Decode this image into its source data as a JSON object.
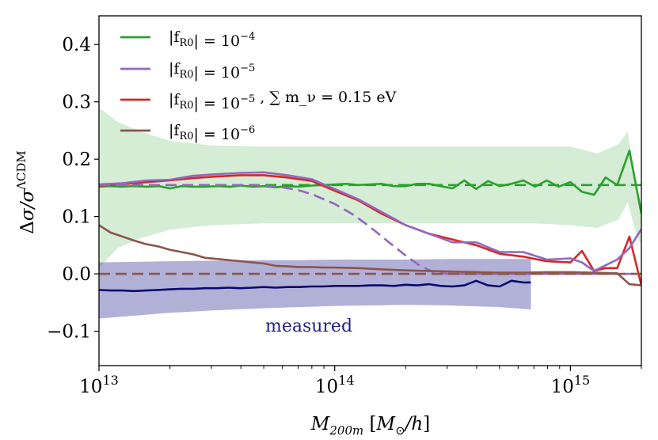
{
  "chart_data": {
    "type": "line",
    "xlabel": "M_200m [M_⊙/h]",
    "ylabel": "Δσ/σ^ΛCDM",
    "xscale": "log",
    "xlim": [
      10000000000000.0,
      2000000000000000.0
    ],
    "ylim": [
      -0.16,
      0.45
    ],
    "x_tick_values": [
      10000000000000.0,
      100000000000000.0,
      1000000000000000.0
    ],
    "x_tick_labels": [
      {
        "base": "10",
        "exp": "13"
      },
      {
        "base": "10",
        "exp": "14"
      },
      {
        "base": "10",
        "exp": "15"
      }
    ],
    "y_tick_values": [
      -0.1,
      0.0,
      0.1,
      0.2,
      0.3,
      0.4
    ],
    "y_tick_labels": [
      "−0.1",
      "0.0",
      "0.1",
      "0.2",
      "0.3",
      "0.4"
    ],
    "grid": false,
    "legend_position": "upper-left",
    "legend": [
      {
        "text": "|f_R0| = 10^−4",
        "color": "#2ca02c"
      },
      {
        "text": "|f_R0| = 10^−5",
        "color": "#9467bd"
      },
      {
        "text": "|f_R0| = 10^−5 , ∑ m_ν = 0.15 eV",
        "color": "#d62728"
      },
      {
        "text": "|f_R0| = 10^−6",
        "color": "#8c564b"
      }
    ],
    "annotation": {
      "text": "measured",
      "color": "#1f1f8f"
    },
    "bands": [
      {
        "name": "fR4-band",
        "color": "#2ca02c",
        "opacity": 0.2,
        "x": [
          10000000000000.0,
          12000000000000.0,
          15000000000000.0,
          20000000000000.0,
          30000000000000.0,
          50000000000000.0,
          70000000000000.0,
          100000000000000.0,
          150000000000000.0,
          200000000000000.0,
          300000000000000.0,
          500000000000000.0,
          700000000000000.0,
          1000000000000000.0,
          1300000000000000.0,
          1600000000000000.0,
          1750000000000000.0,
          1900000000000000.0,
          2000000000000000.0
        ],
        "upper": [
          0.29,
          0.265,
          0.248,
          0.232,
          0.224,
          0.222,
          0.222,
          0.222,
          0.222,
          0.222,
          0.222,
          0.222,
          0.222,
          0.222,
          0.21,
          0.226,
          0.248,
          0.16,
          0.12
        ],
        "lower": [
          0.01,
          0.045,
          0.062,
          0.077,
          0.085,
          0.088,
          0.088,
          0.088,
          0.088,
          0.088,
          0.088,
          0.088,
          0.088,
          0.085,
          0.08,
          0.095,
          0.125,
          0.07,
          0.05
        ]
      },
      {
        "name": "measured-band",
        "color": "#1f1f8f",
        "opacity": 0.35,
        "x": [
          10000000000000.0,
          15000000000000.0,
          20000000000000.0,
          30000000000000.0,
          50000000000000.0,
          70000000000000.0,
          100000000000000.0,
          150000000000000.0,
          200000000000000.0,
          300000000000000.0,
          500000000000000.0,
          680000000000000.0
        ],
        "upper": [
          0.02,
          0.021,
          0.022,
          0.023,
          0.024,
          0.024,
          0.025,
          0.025,
          0.025,
          0.026,
          0.026,
          0.026
        ],
        "lower": [
          -0.078,
          -0.072,
          -0.068,
          -0.064,
          -0.06,
          -0.058,
          -0.056,
          -0.055,
          -0.054,
          -0.055,
          -0.058,
          -0.062
        ]
      }
    ],
    "series": [
      {
        "name": "|f_R0| = 10^−4",
        "color": "#2ca02c",
        "style": "solid",
        "x": [
          10000000000000.0,
          11000000000000.0,
          12500000000000.0,
          14000000000000.0,
          16000000000000.0,
          18000000000000.0,
          20000000000000.0,
          22500000000000.0,
          25000000000000.0,
          28000000000000.0,
          32000000000000.0,
          36000000000000.0,
          40000000000000.0,
          45000000000000.0,
          50000000000000.0,
          56000000000000.0,
          63000000000000.0,
          70000000000000.0,
          80000000000000.0,
          90000000000000.0,
          100000000000000.0,
          112000000000000.0,
          126000000000000.0,
          141000000000000.0,
          158000000000000.0,
          178000000000000.0,
          200000000000000.0,
          224000000000000.0,
          251000000000000.0,
          282000000000000.0,
          316000000000000.0,
          355000000000000.0,
          398000000000000.0,
          447000000000000.0,
          501000000000000.0,
          562000000000000.0,
          631000000000000.0,
          708000000000000.0,
          794000000000000.0,
          891000000000000.0,
          1000000000000000.0,
          1120000000000000.0,
          1260000000000000.0,
          1410000000000000.0,
          1580000000000000.0,
          1780000000000000.0,
          2000000000000000.0
        ],
        "y": [
          0.152,
          0.153,
          0.152,
          0.153,
          0.152,
          0.153,
          0.149,
          0.153,
          0.152,
          0.152,
          0.153,
          0.152,
          0.154,
          0.152,
          0.153,
          0.151,
          0.153,
          0.152,
          0.154,
          0.155,
          0.156,
          0.157,
          0.155,
          0.156,
          0.157,
          0.153,
          0.153,
          0.157,
          0.157,
          0.153,
          0.149,
          0.163,
          0.148,
          0.162,
          0.153,
          0.157,
          0.163,
          0.152,
          0.163,
          0.152,
          0.16,
          0.143,
          0.138,
          0.168,
          0.155,
          0.215,
          0.105
        ]
      },
      {
        "name": "|f_R0| = 10^−4 prediction",
        "color": "#2ca02c",
        "style": "dashed",
        "x": [
          10000000000000.0,
          2000000000000000.0
        ],
        "y": [
          0.155,
          0.155
        ]
      },
      {
        "name": "|f_R0| = 10^−5 , ∑ m_ν = 0.15 eV",
        "color": "#d62728",
        "style": "solid",
        "x": [
          10000000000000.0,
          12500000000000.0,
          16000000000000.0,
          20000000000000.0,
          25000000000000.0,
          32000000000000.0,
          40000000000000.0,
          50000000000000.0,
          63000000000000.0,
          80000000000000.0,
          100000000000000.0,
          126000000000000.0,
          158000000000000.0,
          200000000000000.0,
          251000000000000.0,
          316000000000000.0,
          398000000000000.0,
          501000000000000.0,
          631000000000000.0,
          794000000000000.0,
          1000000000000000.0,
          1120000000000000.0,
          1260000000000000.0,
          1410000000000000.0,
          1580000000000000.0,
          1780000000000000.0,
          2000000000000000.0
        ],
        "y": [
          0.154,
          0.156,
          0.16,
          0.163,
          0.167,
          0.17,
          0.172,
          0.172,
          0.168,
          0.162,
          0.145,
          0.128,
          0.105,
          0.085,
          0.07,
          0.06,
          0.05,
          0.035,
          0.03,
          0.022,
          0.02,
          0.04,
          0.005,
          0.01,
          0.01,
          0.065,
          -0.02
        ]
      },
      {
        "name": "|f_R0| = 10^−5",
        "color": "#9467bd",
        "style": "solid",
        "x": [
          10000000000000.0,
          12500000000000.0,
          16000000000000.0,
          20000000000000.0,
          25000000000000.0,
          32000000000000.0,
          40000000000000.0,
          50000000000000.0,
          63000000000000.0,
          80000000000000.0,
          100000000000000.0,
          126000000000000.0,
          158000000000000.0,
          200000000000000.0,
          251000000000000.0,
          316000000000000.0,
          398000000000000.0,
          501000000000000.0,
          631000000000000.0,
          794000000000000.0,
          1000000000000000.0,
          1120000000000000.0,
          1260000000000000.0,
          1410000000000000.0,
          1580000000000000.0,
          1780000000000000.0,
          2000000000000000.0
        ],
        "y": [
          0.156,
          0.158,
          0.163,
          0.164,
          0.171,
          0.174,
          0.176,
          0.177,
          0.172,
          0.165,
          0.148,
          0.13,
          0.108,
          0.085,
          0.07,
          0.055,
          0.055,
          0.038,
          0.038,
          0.025,
          0.027,
          0.02,
          0.005,
          0.015,
          0.025,
          0.045,
          0.078
        ]
      },
      {
        "name": "|f_R0| = 10^−5 prediction",
        "color": "#9467bd",
        "style": "dashed",
        "x": [
          10000000000000.0,
          20000000000000.0,
          30000000000000.0,
          40000000000000.0,
          50000000000000.0,
          60000000000000.0,
          70000000000000.0,
          80000000000000.0,
          100000000000000.0,
          120000000000000.0,
          140000000000000.0,
          170000000000000.0,
          200000000000000.0,
          230000000000000.0,
          260000000000000.0,
          300000000000000.0,
          2000000000000000.0
        ],
        "y": [
          0.155,
          0.155,
          0.155,
          0.155,
          0.154,
          0.151,
          0.146,
          0.139,
          0.122,
          0.103,
          0.083,
          0.055,
          0.032,
          0.014,
          0.004,
          0.0,
          0.0
        ]
      },
      {
        "name": "|f_R0| = 10^−6",
        "color": "#8c564b",
        "style": "solid",
        "x": [
          10000000000000.0,
          11200000000000.0,
          12600000000000.0,
          14100000000000.0,
          15800000000000.0,
          17800000000000.0,
          20000000000000.0,
          22400000000000.0,
          25100000000000.0,
          28200000000000.0,
          31600000000000.0,
          35500000000000.0,
          39800000000000.0,
          44700000000000.0,
          50100000000000.0,
          56200000000000.0,
          63100000000000.0,
          70800000000000.0,
          79400000000000.0,
          89100000000000.0,
          100000000000000.0,
          126000000000000.0,
          158000000000000.0,
          200000000000000.0,
          251000000000000.0,
          316000000000000.0,
          398000000000000.0,
          501000000000000.0,
          631000000000000.0,
          794000000000000.0,
          1000000000000000.0,
          1260000000000000.0,
          1580000000000000.0,
          1780000000000000.0,
          2000000000000000.0
        ],
        "y": [
          0.085,
          0.072,
          0.065,
          0.058,
          0.052,
          0.048,
          0.042,
          0.038,
          0.034,
          0.028,
          0.026,
          0.024,
          0.022,
          0.02,
          0.018,
          0.014,
          0.013,
          0.012,
          0.012,
          0.011,
          0.011,
          0.01,
          0.008,
          0.006,
          0.005,
          0.004,
          0.003,
          0.002,
          0.002,
          0.003,
          0.003,
          0.002,
          0.001,
          -0.018,
          -0.02
        ]
      },
      {
        "name": "|f_R0| = 10^−6 prediction",
        "color": "#8c564b",
        "style": "dashed",
        "x": [
          10000000000000.0,
          2000000000000000.0
        ],
        "y": [
          0.0,
          0.0
        ]
      },
      {
        "name": "measured",
        "color": "#0a0a6e",
        "style": "solid",
        "x": [
          10000000000000.0,
          11200000000000.0,
          12600000000000.0,
          14100000000000.0,
          15800000000000.0,
          17800000000000.0,
          20000000000000.0,
          22400000000000.0,
          25100000000000.0,
          28200000000000.0,
          31600000000000.0,
          35500000000000.0,
          39800000000000.0,
          44700000000000.0,
          50100000000000.0,
          56200000000000.0,
          63100000000000.0,
          70800000000000.0,
          79400000000000.0,
          89100000000000.0,
          100000000000000.0,
          112000000000000.0,
          126000000000000.0,
          141000000000000.0,
          158000000000000.0,
          178000000000000.0,
          200000000000000.0,
          224000000000000.0,
          251000000000000.0,
          282000000000000.0,
          316000000000000.0,
          355000000000000.0,
          398000000000000.0,
          447000000000000.0,
          501000000000000.0,
          562000000000000.0,
          631000000000000.0,
          680000000000000.0
        ],
        "y": [
          -0.028,
          -0.029,
          -0.029,
          -0.03,
          -0.029,
          -0.028,
          -0.027,
          -0.026,
          -0.026,
          -0.025,
          -0.025,
          -0.024,
          -0.025,
          -0.024,
          -0.023,
          -0.024,
          -0.023,
          -0.023,
          -0.022,
          -0.022,
          -0.021,
          -0.021,
          -0.021,
          -0.02,
          -0.02,
          -0.021,
          -0.019,
          -0.02,
          -0.018,
          -0.021,
          -0.022,
          -0.02,
          -0.012,
          -0.02,
          -0.022,
          -0.012,
          -0.015,
          -0.015
        ]
      }
    ]
  }
}
